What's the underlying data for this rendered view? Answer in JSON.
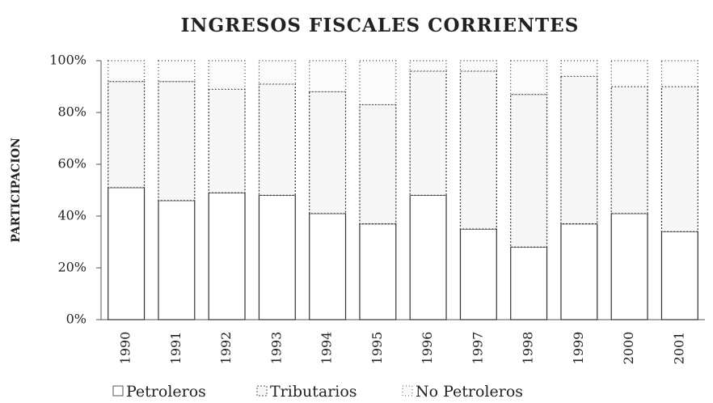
{
  "chart_data": {
    "type": "stacked_bar",
    "title": "INGRESOS FISCALES CORRIENTES",
    "y_label": "PARTICIPACION",
    "categories": [
      "1990",
      "1991",
      "1992",
      "1993",
      "1994",
      "1995",
      "1996",
      "1997",
      "1998",
      "1999",
      "2000",
      "2001"
    ],
    "series": [
      {
        "name": "Petroleros",
        "color": "#ffffff",
        "values": [
          51,
          46,
          49,
          48,
          41,
          37,
          48,
          35,
          28,
          37,
          41,
          34
        ]
      },
      {
        "name": "Tributarios",
        "color": "#f7f7f7",
        "values": [
          41,
          46,
          40,
          43,
          47,
          46,
          48,
          61,
          59,
          57,
          49,
          56
        ]
      },
      {
        "name": "No Petroleros",
        "color": "#fbfbfb",
        "values": [
          8,
          8,
          11,
          9,
          12,
          17,
          4,
          4,
          13,
          6,
          10,
          10
        ]
      }
    ],
    "ylim": [
      0,
      100
    ],
    "yticks": [
      {
        "value": 0,
        "label": "0%"
      },
      {
        "value": 20,
        "label": "20%"
      },
      {
        "value": 40,
        "label": "40%"
      },
      {
        "value": 60,
        "label": "60%"
      },
      {
        "value": 80,
        "label": "80%"
      },
      {
        "value": 100,
        "label": "100%"
      }
    ]
  }
}
